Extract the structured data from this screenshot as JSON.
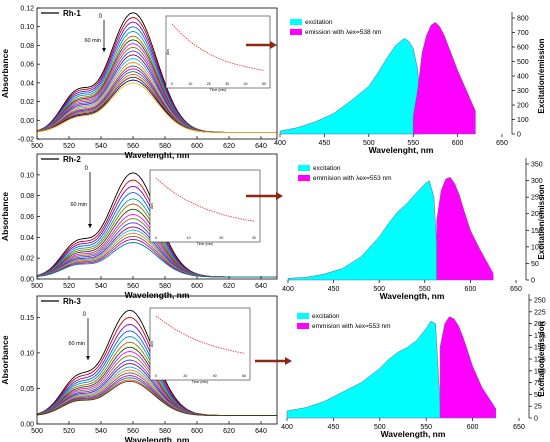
{
  "chart_data": [
    {
      "type": "line",
      "panel": "absorbance",
      "legend": "Rh-1",
      "time_label": "0",
      "time_label_end": "60 min",
      "xlabel": "Wavelenght, nm",
      "ylabel": "Absorbance",
      "xlim": [
        500,
        650
      ],
      "ylim": [
        -0.02,
        0.12
      ],
      "xticks": [
        "500",
        "520",
        "540",
        "560",
        "580",
        "600",
        "620",
        "640"
      ],
      "yticks": [
        "-0.02",
        "0.00",
        "0.02",
        "0.04",
        "0.06",
        "0.08",
        "0.10",
        "0.12"
      ],
      "series_count": 20,
      "peak_wavelength": 560,
      "peak_values": [
        0.115,
        0.11,
        0.105,
        0.1,
        0.095,
        0.09,
        0.086,
        0.082,
        0.078,
        0.074,
        0.07,
        0.066,
        0.062,
        0.058,
        0.055,
        0.052,
        0.049,
        0.046,
        0.043,
        0.04
      ],
      "inset": {
        "type": "line",
        "xlabel": "Time (min)",
        "ylabel": "Abs",
        "xticks": [
          "0",
          "10",
          "20",
          "30",
          "40",
          "50"
        ],
        "x": [
          0,
          5,
          10,
          15,
          20,
          25,
          30,
          35,
          40,
          45,
          50
        ],
        "y": [
          1.0,
          0.82,
          0.67,
          0.55,
          0.45,
          0.37,
          0.3,
          0.25,
          0.21,
          0.17,
          0.14
        ]
      }
    },
    {
      "type": "area",
      "panel": "excitation-emission",
      "legend": [
        "excitation",
        "emission with λex=538 nm"
      ],
      "xlabel": "Wavelenght, nm",
      "ylabel": "Excitation/emission",
      "xlim": [
        400,
        650
      ],
      "ylim": [
        0,
        800
      ],
      "xticks": [
        "400",
        "450",
        "500",
        "550",
        "600",
        "650"
      ],
      "yticks": [
        "0",
        "100",
        "200",
        "300",
        "400",
        "500",
        "600",
        "700",
        "800"
      ],
      "series": [
        {
          "name": "excitation",
          "x": [
            400,
            420,
            440,
            460,
            480,
            500,
            510,
            520,
            530,
            540,
            545,
            550,
            555,
            560
          ],
          "values": [
            20,
            45,
            85,
            140,
            230,
            330,
            420,
            520,
            610,
            660,
            640,
            590,
            450,
            20
          ]
        },
        {
          "name": "emission",
          "x": [
            550,
            555,
            560,
            565,
            570,
            575,
            580,
            585,
            590,
            600,
            610,
            620
          ],
          "values": [
            120,
            300,
            560,
            680,
            750,
            770,
            740,
            680,
            600,
            440,
            300,
            160
          ]
        }
      ]
    },
    {
      "type": "line",
      "panel": "absorbance",
      "legend": "Rh-2",
      "time_label": "0",
      "time_label_end": "60 min",
      "xlabel": "Wavelength, nm",
      "ylabel": "Absorbance",
      "xlim": [
        500,
        650
      ],
      "ylim": [
        0,
        0.12
      ],
      "xticks": [
        "500",
        "520",
        "540",
        "560",
        "580",
        "600",
        "620",
        "640"
      ],
      "yticks": [
        "0.00",
        "0.02",
        "0.04",
        "0.06",
        "0.08",
        "0.10"
      ],
      "series_count": 16,
      "peak_wavelength": 560,
      "peak_values": [
        0.102,
        0.095,
        0.089,
        0.083,
        0.077,
        0.072,
        0.067,
        0.062,
        0.058,
        0.054,
        0.05,
        0.047,
        0.044,
        0.041,
        0.038,
        0.035
      ],
      "inset": {
        "type": "line",
        "xlabel": "Time (min)",
        "ylabel": "Abs",
        "xticks": [
          "0",
          "10",
          "20",
          "30"
        ],
        "x": [
          0,
          3,
          6,
          9,
          12,
          15,
          18,
          21,
          24,
          27,
          30
        ],
        "y": [
          1.0,
          0.84,
          0.71,
          0.6,
          0.51,
          0.43,
          0.37,
          0.31,
          0.27,
          0.23,
          0.2
        ]
      }
    },
    {
      "type": "area",
      "panel": "excitation-emission",
      "legend": [
        "excitation",
        "emmision with λex=553 nm"
      ],
      "xlabel": "Wavelength, nm",
      "ylabel": "Excitation/emission",
      "xlim": [
        400,
        650
      ],
      "ylim": [
        0,
        350
      ],
      "xticks": [
        "400",
        "450",
        "500",
        "550",
        "600",
        "650"
      ],
      "yticks": [
        "0",
        "50",
        "100",
        "150",
        "200",
        "250",
        "300",
        "350"
      ],
      "series": [
        {
          "name": "excitation",
          "x": [
            400,
            420,
            440,
            460,
            480,
            500,
            510,
            520,
            530,
            540,
            550,
            555,
            560,
            563
          ],
          "values": [
            5,
            8,
            18,
            35,
            70,
            130,
            170,
            205,
            230,
            260,
            290,
            300,
            250,
            110
          ]
        },
        {
          "name": "emission",
          "x": [
            563,
            568,
            573,
            578,
            583,
            588,
            593,
            600,
            610,
            620,
            625
          ],
          "values": [
            180,
            270,
            305,
            310,
            290,
            255,
            210,
            150,
            95,
            45,
            20
          ]
        }
      ]
    },
    {
      "type": "line",
      "panel": "absorbance",
      "legend": "Rh-3",
      "time_label": "0",
      "time_label_end": "60 min",
      "xlabel": "Wavelength, nm",
      "ylabel": "Absorbance",
      "xlim": [
        500,
        650
      ],
      "ylim": [
        0,
        0.18
      ],
      "xticks": [
        "500",
        "520",
        "540",
        "560",
        "580",
        "600",
        "620",
        "640"
      ],
      "yticks": [
        "0.00",
        "0.05",
        "0.10",
        "0.15"
      ],
      "series_count": 18,
      "peak_wavelength": 558,
      "peak_values": [
        0.16,
        0.15,
        0.14,
        0.131,
        0.123,
        0.115,
        0.108,
        0.102,
        0.096,
        0.09,
        0.085,
        0.08,
        0.076,
        0.072,
        0.068,
        0.065,
        0.062,
        0.06
      ],
      "inset": {
        "type": "line",
        "xlabel": "Time (min)",
        "ylabel": "Abs",
        "xticks": [
          "0",
          "20",
          "40",
          "60"
        ],
        "x": [
          0,
          6,
          12,
          18,
          24,
          30,
          36,
          42,
          48,
          54,
          60
        ],
        "y": [
          1.0,
          0.88,
          0.77,
          0.68,
          0.6,
          0.53,
          0.47,
          0.42,
          0.38,
          0.34,
          0.31
        ]
      }
    },
    {
      "type": "area",
      "panel": "excitation-emission",
      "legend": [
        "excitation",
        "emmision with λex=553 nm"
      ],
      "xlabel": "Wavelength, nm",
      "ylabel": "Excitation/emission",
      "xlim": [
        400,
        650
      ],
      "ylim": [
        0,
        250
      ],
      "xticks": [
        "400",
        "450",
        "500",
        "550",
        "600",
        "650"
      ],
      "yticks": [
        "0",
        "25",
        "50",
        "75",
        "100",
        "125",
        "150",
        "175",
        "200",
        "225",
        "250"
      ],
      "series": [
        {
          "name": "excitation",
          "x": [
            400,
            420,
            440,
            460,
            480,
            500,
            510,
            520,
            530,
            540,
            550,
            555,
            560,
            565
          ],
          "values": [
            15,
            22,
            35,
            55,
            75,
            105,
            125,
            140,
            150,
            165,
            190,
            205,
            200,
            30
          ]
        },
        {
          "name": "emission",
          "x": [
            565,
            570,
            575,
            580,
            585,
            590,
            595,
            600,
            610,
            620,
            625
          ],
          "values": [
            150,
            200,
            215,
            210,
            195,
            170,
            140,
            110,
            65,
            35,
            20
          ]
        }
      ]
    }
  ],
  "colors": {
    "excitation": "#00ffff",
    "emission": "#ff00ff",
    "arrow": "#8b2a14",
    "decay": "#e03030"
  }
}
